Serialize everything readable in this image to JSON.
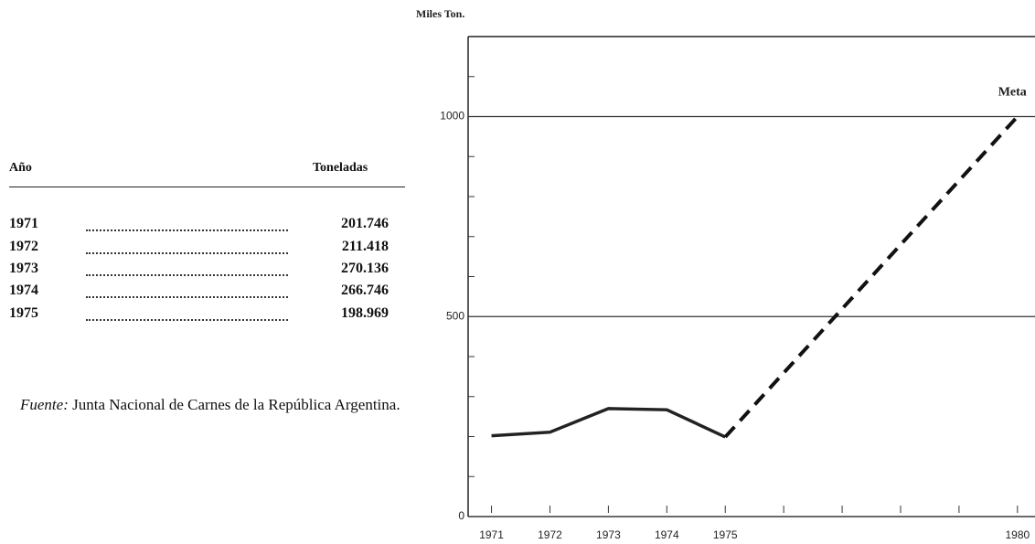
{
  "table": {
    "header": [
      "Año",
      "Toneladas"
    ],
    "rows": [
      [
        "1971",
        "201.746"
      ],
      [
        "1972",
        "211.418"
      ],
      [
        "1973",
        "270.136"
      ],
      [
        "1974",
        "266.746"
      ],
      [
        "1975",
        "198.969"
      ]
    ]
  },
  "footnote": {
    "label": "Fuente:",
    "text": "Junta Nacional de Carnes de la República Argentina."
  },
  "chart_data": {
    "type": "line",
    "ylabel": "Miles Ton.",
    "series": [
      {
        "x": [
          1971,
          1972,
          1973,
          1974,
          1975
        ],
        "values": [
          202,
          211,
          270,
          267,
          199
        ],
        "color": "#222222",
        "style": "solid"
      },
      {
        "x": [
          1975,
          1980
        ],
        "values": [
          199,
          1000
        ],
        "color": "#111111",
        "style": "dashed"
      }
    ],
    "annotations": [
      {
        "text": "Meta",
        "x": 1980,
        "y": 1060
      }
    ],
    "xlim": [
      1970.6,
      1980.3
    ],
    "xticks": [
      1971,
      1972,
      1973,
      1974,
      1975,
      1980
    ],
    "xminor_ticks": [
      1976,
      1977,
      1978,
      1979
    ],
    "ylim": [
      0,
      1200
    ],
    "yticks": [
      0,
      500,
      1000
    ],
    "yminor_ticks": [
      100,
      200,
      300,
      400,
      600,
      700,
      800,
      900,
      1100
    ],
    "grid": true
  }
}
